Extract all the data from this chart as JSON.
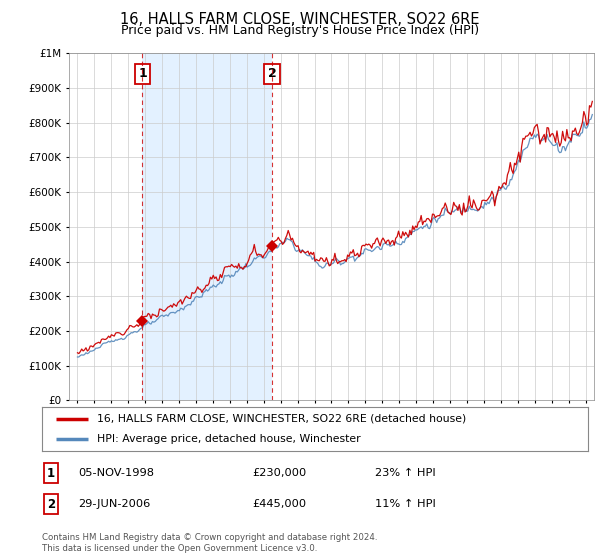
{
  "title": "16, HALLS FARM CLOSE, WINCHESTER, SO22 6RE",
  "subtitle": "Price paid vs. HM Land Registry's House Price Index (HPI)",
  "footer": "Contains HM Land Registry data © Crown copyright and database right 2024.\nThis data is licensed under the Open Government Licence v3.0.",
  "legend_line1": "16, HALLS FARM CLOSE, WINCHESTER, SO22 6RE (detached house)",
  "legend_line2": "HPI: Average price, detached house, Winchester",
  "sale1_date_label": "05-NOV-1998",
  "sale1_price_label": "£230,000",
  "sale1_hpi_label": "23% ↑ HPI",
  "sale2_date_label": "29-JUN-2006",
  "sale2_price_label": "£445,000",
  "sale2_hpi_label": "11% ↑ HPI",
  "sale1_x": 1998.84,
  "sale1_y": 230000,
  "sale2_x": 2006.49,
  "sale2_y": 445000,
  "ylim": [
    0,
    1000000
  ],
  "xlim": [
    1994.5,
    2025.5
  ],
  "red_color": "#cc0000",
  "blue_color": "#5588bb",
  "shade_color": "#ddeeff",
  "grid_color": "#cccccc",
  "bg_color": "#ffffff",
  "title_fontsize": 10.5,
  "subtitle_fontsize": 9
}
